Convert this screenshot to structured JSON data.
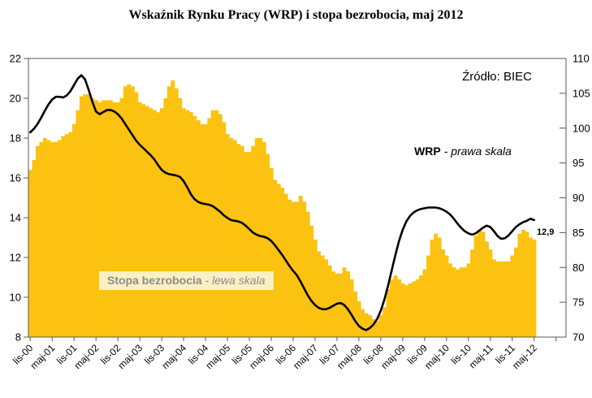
{
  "chart_data": {
    "type": "bar+line",
    "title": "Wskaźnik Rynku Pracy (WRP) i stopa bezrobocia, maj 2012",
    "source": "Źródło: BIEC",
    "grid": false,
    "n_points": 139,
    "x_start": "lis-00",
    "x_end": "maj-12",
    "x_tick_every_months": 6,
    "x_tick_labels": [
      "lis-00",
      "maj-01",
      "lis-01",
      "maj-02",
      "lis-02",
      "maj-03",
      "lis-03",
      "maj-04",
      "lis-04",
      "maj-05",
      "lis-05",
      "maj-06",
      "lis-06",
      "maj-07",
      "lis-07",
      "maj-08",
      "lis-08",
      "maj-09",
      "lis-09",
      "maj-10",
      "lis-10",
      "maj-11",
      "lis-11",
      "maj-12"
    ],
    "left_axis": {
      "min": 8,
      "max": 22,
      "ticks": [
        8,
        10,
        12,
        14,
        16,
        18,
        20,
        22
      ]
    },
    "right_axis": {
      "min": 70,
      "max": 110,
      "ticks": [
        70,
        75,
        80,
        85,
        90,
        95,
        100,
        105,
        110
      ]
    },
    "series": [
      {
        "name": "Stopa bezrobocia",
        "legend": "Stopa bezrobocia - lewa skala",
        "type": "bar",
        "axis": "left",
        "color": "#FCC211",
        "values": [
          16.4,
          16.9,
          17.6,
          17.8,
          18.0,
          17.9,
          17.8,
          17.8,
          17.9,
          18.1,
          18.2,
          18.3,
          18.7,
          19.4,
          20.1,
          20.2,
          20.2,
          20.0,
          19.9,
          19.8,
          19.9,
          19.9,
          19.9,
          19.8,
          19.8,
          20.0,
          20.6,
          20.7,
          20.6,
          20.3,
          19.8,
          19.7,
          19.6,
          19.5,
          19.4,
          19.3,
          19.5,
          20.0,
          20.6,
          20.9,
          20.5,
          20.0,
          19.5,
          19.4,
          19.3,
          19.1,
          18.9,
          18.7,
          18.7,
          19.0,
          19.4,
          19.4,
          19.2,
          18.8,
          18.2,
          18.0,
          17.9,
          17.7,
          17.6,
          17.3,
          17.3,
          17.6,
          18.0,
          18.0,
          17.8,
          17.2,
          16.5,
          15.9,
          15.7,
          15.5,
          15.2,
          14.9,
          14.8,
          14.8,
          15.1,
          14.8,
          14.3,
          13.6,
          12.9,
          12.3,
          12.1,
          11.9,
          11.6,
          11.3,
          11.2,
          11.2,
          11.5,
          11.3,
          10.9,
          10.3,
          9.8,
          9.4,
          9.2,
          9.1,
          8.9,
          8.8,
          9.1,
          9.5,
          10.4,
          10.9,
          11.1,
          10.9,
          10.7,
          10.6,
          10.7,
          10.8,
          10.9,
          11.1,
          11.4,
          12.1,
          12.9,
          13.2,
          13.0,
          12.4,
          12.1,
          11.7,
          11.5,
          11.4,
          11.5,
          11.5,
          11.7,
          12.4,
          13.1,
          13.4,
          13.3,
          12.8,
          12.4,
          11.9,
          11.8,
          11.8,
          11.8,
          11.8,
          12.1,
          12.5,
          13.2,
          13.4,
          13.3,
          13.0,
          12.9
        ]
      },
      {
        "name": "WRP",
        "legend": "WRP - prawa skala",
        "type": "line",
        "axis": "right",
        "color": "#000000",
        "values": [
          99.4,
          99.9,
          100.6,
          101.5,
          102.5,
          103.4,
          104.1,
          104.5,
          104.5,
          104.4,
          104.7,
          105.3,
          106.2,
          107.1,
          107.6,
          107.0,
          105.5,
          103.8,
          102.4,
          102.0,
          102.3,
          102.6,
          102.6,
          102.4,
          102.0,
          101.4,
          100.6,
          99.8,
          99.0,
          98.2,
          97.6,
          97.1,
          96.6,
          96.1,
          95.5,
          94.7,
          94.0,
          93.6,
          93.4,
          93.3,
          93.2,
          93.0,
          92.4,
          91.5,
          90.5,
          89.8,
          89.4,
          89.2,
          89.1,
          89.0,
          88.8,
          88.4,
          88.0,
          87.5,
          87.1,
          86.8,
          86.7,
          86.6,
          86.4,
          86.0,
          85.5,
          85.0,
          84.7,
          84.5,
          84.4,
          84.2,
          83.8,
          83.2,
          82.5,
          81.8,
          81.0,
          80.2,
          79.5,
          78.9,
          78.0,
          77.0,
          76.0,
          75.2,
          74.6,
          74.2,
          74.0,
          74.0,
          74.2,
          74.5,
          74.8,
          74.9,
          74.6,
          74.0,
          73.2,
          72.3,
          71.6,
          71.2,
          71.0,
          71.3,
          71.8,
          72.6,
          73.8,
          75.4,
          77.4,
          79.6,
          81.8,
          83.8,
          85.4,
          86.6,
          87.4,
          87.9,
          88.2,
          88.4,
          88.5,
          88.6,
          88.6,
          88.6,
          88.5,
          88.3,
          88.0,
          87.6,
          87.0,
          86.3,
          85.7,
          85.2,
          84.9,
          84.7,
          84.9,
          85.3,
          85.7,
          86.0,
          85.8,
          85.2,
          84.5,
          84.1,
          84.2,
          84.6,
          85.2,
          85.8,
          86.2,
          86.5,
          86.7,
          87.0,
          86.8
        ]
      }
    ],
    "annotations": {
      "wrp_bold": "WRP",
      "wrp_rest": " - prawa skala",
      "unemp_bold": "Stopa bezrobocia",
      "unemp_rest": " - lewa skala",
      "last_value": "12,9"
    }
  },
  "colors": {
    "bar": "#FCC211",
    "line": "#000000",
    "axis": "#595959",
    "tick_text": "#000000",
    "label_box_bg": "#FBF0C3",
    "label_box_text": "#8B8B8B",
    "background": "#FFFFFF"
  }
}
